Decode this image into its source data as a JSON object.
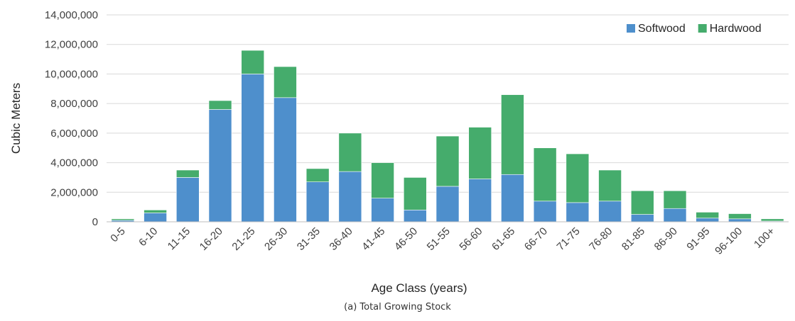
{
  "caption": "(a) Total Growing Stock",
  "chart_data": {
    "type": "bar",
    "stacked": true,
    "xlabel": "Age Class (years)",
    "ylabel": "Cubic Meters",
    "ylim": [
      0,
      14000000
    ],
    "yticks": [
      0,
      2000000,
      4000000,
      6000000,
      8000000,
      10000000,
      12000000,
      14000000
    ],
    "ytick_labels": [
      "0",
      "2,000,000",
      "4,000,000",
      "6,000,000",
      "8,000,000",
      "10,000,000",
      "12,000,000",
      "14,000,000"
    ],
    "grid": "horizontal",
    "legend_position": "top-right",
    "categories": [
      "0-5",
      "6-10",
      "11-15",
      "16-20",
      "21-25",
      "26-30",
      "31-35",
      "36-40",
      "41-45",
      "46-50",
      "51-55",
      "56-60",
      "61-65",
      "66-70",
      "71-75",
      "76-80",
      "81-85",
      "86-90",
      "91-95",
      "96-100",
      "100+"
    ],
    "series": [
      {
        "name": "Softwood",
        "color": "#4e8fcc",
        "values": [
          100000,
          600000,
          3000000,
          7600000,
          10000000,
          8400000,
          2700000,
          3400000,
          1600000,
          800000,
          2400000,
          2900000,
          3200000,
          1400000,
          1300000,
          1400000,
          500000,
          900000,
          250000,
          200000,
          50000
        ]
      },
      {
        "name": "Hardwood",
        "color": "#45ac6c",
        "values": [
          100000,
          200000,
          500000,
          600000,
          1600000,
          2100000,
          900000,
          2600000,
          2400000,
          2200000,
          3400000,
          3500000,
          5400000,
          3600000,
          3300000,
          2100000,
          1600000,
          1200000,
          400000,
          350000,
          150000
        ]
      }
    ]
  }
}
